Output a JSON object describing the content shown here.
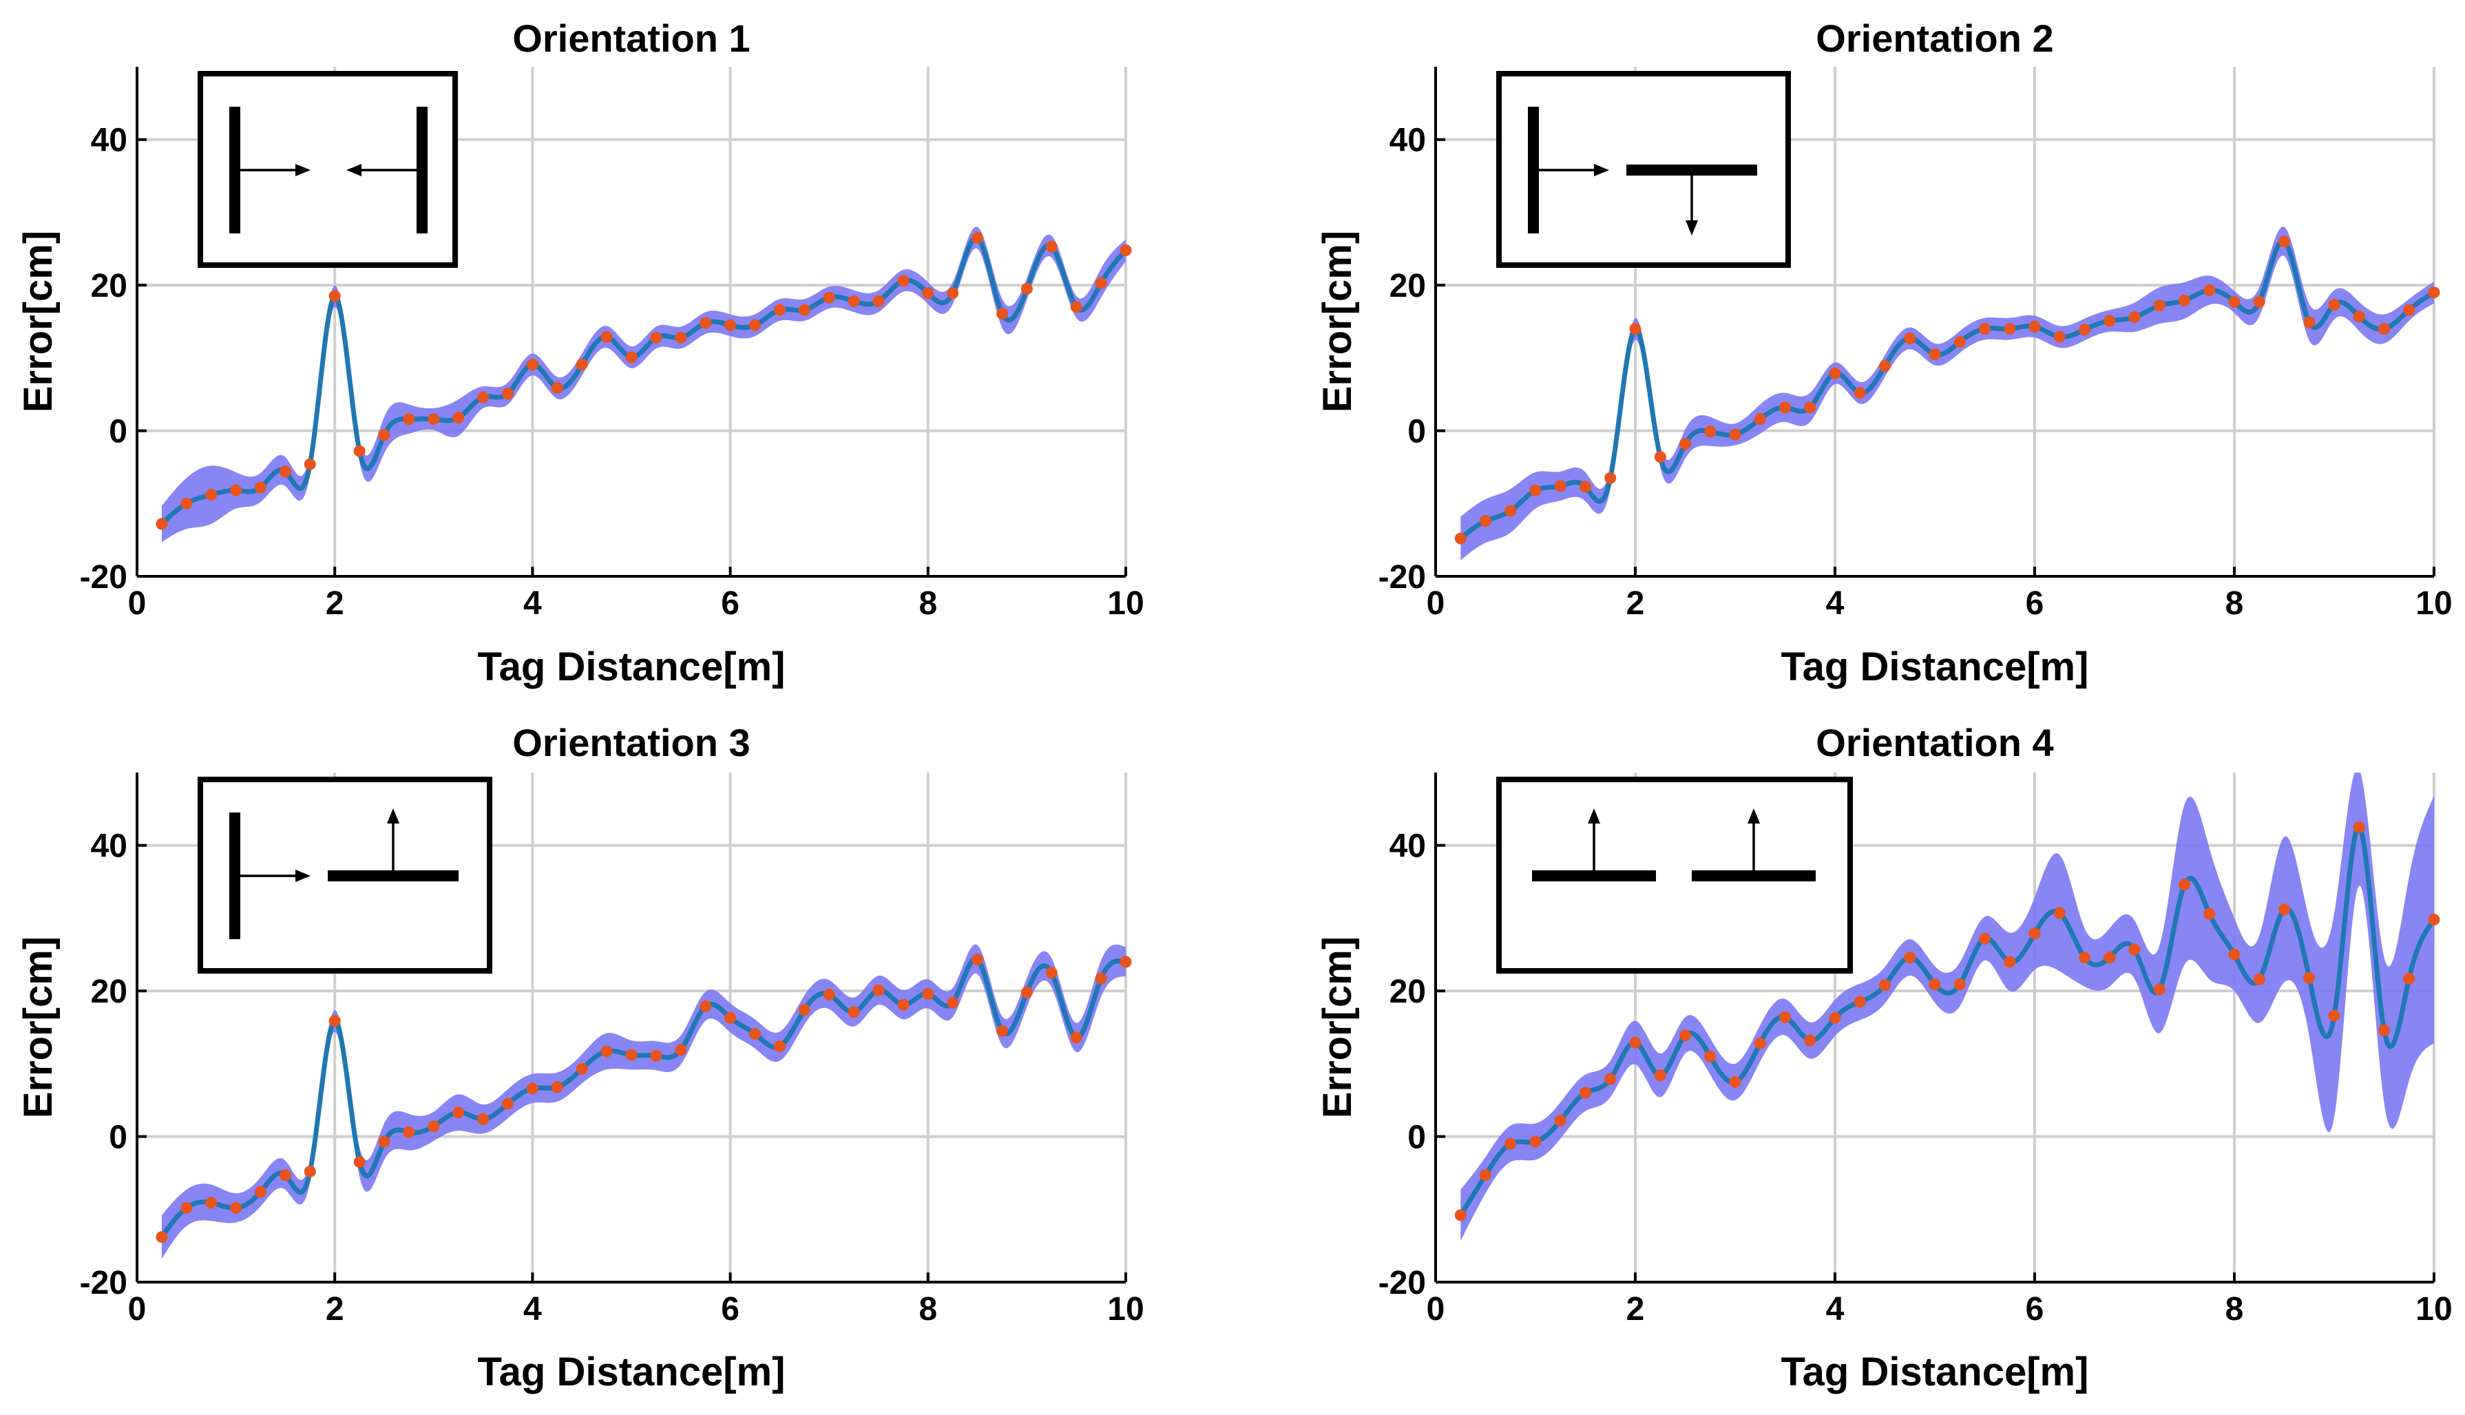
{
  "figure": {
    "colors": {
      "band": "#7b78f4",
      "line": "#1f77b4",
      "points": "#e8541c",
      "grid": "#cfcfcf"
    }
  },
  "chart_data": [
    {
      "type": "line",
      "title": "Orientation 1",
      "xlabel": "Tag Distance[m]",
      "ylabel": "Error[cm]",
      "xlim": [
        0,
        10
      ],
      "ylim": [
        -20,
        50
      ],
      "xticks": [
        0,
        2,
        4,
        6,
        8,
        10
      ],
      "yticks": [
        -20,
        0,
        20,
        40
      ],
      "grid": true,
      "inset": "two vertical bars facing each other",
      "x": [
        0.25,
        0.5,
        0.75,
        1.0,
        1.25,
        1.5,
        1.75,
        2.0,
        2.25,
        2.5,
        2.75,
        3.0,
        3.25,
        3.5,
        3.75,
        4.0,
        4.25,
        4.5,
        4.75,
        5.0,
        5.25,
        5.5,
        5.75,
        6.0,
        6.25,
        6.5,
        6.75,
        7.0,
        7.25,
        7.5,
        7.75,
        8.0,
        8.25,
        8.5,
        8.75,
        9.0,
        9.25,
        9.5,
        9.75,
        10.0
      ],
      "series": [
        {
          "name": "Mean error",
          "values": [
            -12.8,
            -10,
            -8.8,
            -8.2,
            -7.8,
            -5.6,
            -4.6,
            18.5,
            -2.8,
            -0.6,
            1.6,
            1.6,
            1.8,
            4.6,
            5.1,
            9.1,
            5.9,
            9.1,
            12.9,
            10.1,
            12.8,
            12.8,
            14.8,
            14.5,
            14.5,
            16.6,
            16.6,
            18.3,
            17.8,
            17.8,
            20.6,
            18.9,
            18.9,
            26.5,
            16.1,
            19.5,
            25.3,
            17,
            20.3,
            24.8
          ]
        },
        {
          "name": "Uncertainty half-width",
          "values": [
            2.5,
            3.5,
            4,
            2.5,
            2,
            2,
            1.5,
            1.5,
            1.5,
            2.5,
            2,
            1.5,
            2.5,
            1.5,
            1.5,
            1.5,
            1.5,
            1.5,
            1.5,
            1.5,
            1.5,
            1.5,
            1.5,
            1.5,
            1.5,
            1.5,
            1.5,
            1.5,
            1.5,
            1.5,
            1.5,
            1.5,
            1.5,
            1.5,
            2,
            1.5,
            1.5,
            1.5,
            2,
            1.5
          ]
        }
      ]
    },
    {
      "type": "line",
      "title": "Orientation 2",
      "xlabel": "Tag Distance[m]",
      "ylabel": "Error[cm]",
      "xlim": [
        0,
        10
      ],
      "ylim": [
        -20,
        50
      ],
      "xticks": [
        0,
        2,
        4,
        6,
        8,
        10
      ],
      "yticks": [
        -20,
        0,
        20,
        40
      ],
      "grid": true,
      "inset": "vertical bar and horizontal bar pointing down",
      "x": [
        0.25,
        0.5,
        0.75,
        1.0,
        1.25,
        1.5,
        1.75,
        2.0,
        2.25,
        2.5,
        2.75,
        3.0,
        3.25,
        3.5,
        3.75,
        4.0,
        4.25,
        4.5,
        4.75,
        5.0,
        5.25,
        5.5,
        5.75,
        6.0,
        6.25,
        6.5,
        6.75,
        7.0,
        7.25,
        7.5,
        7.75,
        8.0,
        8.25,
        8.5,
        8.75,
        9.0,
        9.25,
        9.5,
        9.75,
        10.0
      ],
      "series": [
        {
          "name": "Mean error",
          "values": [
            -14.8,
            -12.4,
            -11,
            -8.2,
            -7.6,
            -7.7,
            -6.5,
            14,
            -3.6,
            -1.8,
            -0.1,
            -0.5,
            1.6,
            3.2,
            3.2,
            7.9,
            5.2,
            8.9,
            12.7,
            10.5,
            12.2,
            14,
            14,
            14.3,
            12.9,
            13.9,
            15.1,
            15.6,
            17.2,
            17.9,
            19.3,
            17.7,
            17.7,
            26,
            14.9,
            17.3,
            15.7,
            14,
            16.6,
            19
          ]
        },
        {
          "name": "Uncertainty half-width",
          "values": [
            3,
            3,
            3,
            2.5,
            2,
            2,
            1.5,
            1.5,
            1.5,
            2,
            2,
            1.5,
            2,
            2,
            2,
            1.5,
            1.5,
            1.5,
            1.5,
            1.5,
            1.5,
            1.5,
            1.5,
            1.5,
            1.5,
            1.5,
            1.5,
            2,
            2.5,
            2.5,
            2,
            1.5,
            2,
            2,
            2.5,
            2,
            2,
            2,
            1.5,
            1.5
          ]
        }
      ]
    },
    {
      "type": "line",
      "title": "Orientation 3",
      "xlabel": "Tag Distance[m]",
      "ylabel": "Error[cm]",
      "xlim": [
        0,
        10
      ],
      "ylim": [
        -20,
        50
      ],
      "xticks": [
        0,
        2,
        4,
        6,
        8,
        10
      ],
      "yticks": [
        -20,
        0,
        20,
        40
      ],
      "grid": true,
      "inset": "vertical bar and horizontal bar pointing up",
      "x": [
        0.25,
        0.5,
        0.75,
        1.0,
        1.25,
        1.5,
        1.75,
        2.0,
        2.25,
        2.5,
        2.75,
        3.0,
        3.25,
        3.5,
        3.75,
        4.0,
        4.25,
        4.5,
        4.75,
        5.0,
        5.25,
        5.5,
        5.75,
        6.0,
        6.25,
        6.5,
        6.75,
        7.0,
        7.25,
        7.5,
        7.75,
        8.0,
        8.25,
        8.5,
        8.75,
        9.0,
        9.25,
        9.5,
        9.75,
        10.0
      ],
      "series": [
        {
          "name": "Mean error",
          "values": [
            -13.8,
            -9.8,
            -9.1,
            -9.8,
            -7.6,
            -5.3,
            -4.8,
            15.9,
            -3.5,
            -0.7,
            0.6,
            1.4,
            3.3,
            2.4,
            4.5,
            6.6,
            6.8,
            9.3,
            11.7,
            11.2,
            11.1,
            11.9,
            17.9,
            16.3,
            14.1,
            12.4,
            17.4,
            19.5,
            17.1,
            20.1,
            18.1,
            19.6,
            18.4,
            24.3,
            14.5,
            19.8,
            22.5,
            13.6,
            21.7,
            24
          ]
        },
        {
          "name": "Uncertainty half-width",
          "values": [
            3,
            2.5,
            2.5,
            2,
            2,
            2,
            1.5,
            1.5,
            2,
            2.5,
            2.5,
            2,
            2.5,
            2,
            2,
            2,
            2,
            2,
            2.5,
            2,
            2,
            2,
            2,
            2,
            2,
            2,
            2,
            2,
            2,
            2,
            2,
            2,
            2,
            2,
            2,
            2,
            2,
            2,
            2.5,
            2
          ]
        }
      ]
    },
    {
      "type": "line",
      "title": "Orientation 4",
      "xlabel": "Tag Distance[m]",
      "ylabel": "Error[cm]",
      "xlim": [
        0,
        10
      ],
      "ylim": [
        -20,
        50
      ],
      "xticks": [
        0,
        2,
        4,
        6,
        8,
        10
      ],
      "yticks": [
        -20,
        0,
        20,
        40
      ],
      "grid": true,
      "inset": "two horizontal bars both pointing up",
      "x": [
        0.25,
        0.5,
        0.75,
        1.0,
        1.25,
        1.5,
        1.75,
        2.0,
        2.25,
        2.5,
        2.75,
        3.0,
        3.25,
        3.5,
        3.75,
        4.0,
        4.25,
        4.5,
        4.75,
        5.0,
        5.25,
        5.5,
        5.75,
        6.0,
        6.25,
        6.5,
        6.75,
        7.0,
        7.25,
        7.5,
        7.75,
        8.0,
        8.25,
        8.5,
        8.75,
        9.0,
        9.25,
        9.5,
        9.75,
        10.0
      ],
      "series": [
        {
          "name": "Mean error",
          "values": [
            -10.8,
            -5.3,
            -1,
            -0.7,
            2.2,
            6,
            7.9,
            12.9,
            8.4,
            13.9,
            11,
            7.5,
            12.8,
            16.4,
            13.2,
            16.3,
            18.5,
            20.8,
            24.6,
            20.9,
            20.9,
            27.2,
            24,
            27.9,
            30.7,
            24.6,
            24.6,
            25.7,
            20.2,
            34.6,
            30.6,
            25,
            21.6,
            31.2,
            21.8,
            16.6,
            42.5,
            14.6,
            21.7,
            29.8
          ]
        },
        {
          "name": "Uncertainty half-width",
          "values": [
            3.5,
            2.5,
            2.5,
            2.5,
            2.5,
            2.5,
            2.5,
            3,
            3,
            2.5,
            2.5,
            2.5,
            2.5,
            2.5,
            2.5,
            2.5,
            2.5,
            2.5,
            2.5,
            2.5,
            3,
            3,
            4,
            5,
            8,
            4,
            4,
            4,
            6,
            11,
            9,
            5,
            6,
            10,
            8,
            14,
            8,
            10,
            14,
            17
          ]
        }
      ]
    }
  ]
}
